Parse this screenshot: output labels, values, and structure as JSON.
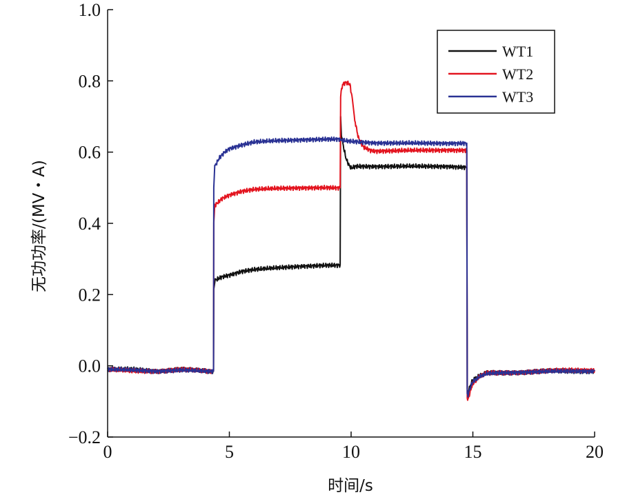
{
  "chart_data": {
    "type": "line",
    "title": "",
    "xlabel": "时间/s",
    "ylabel": "无功功率/(MV・A)",
    "xlim": [
      0,
      20
    ],
    "ylim": [
      -0.2,
      1.0
    ],
    "xticks": [
      0,
      5,
      10,
      15,
      20
    ],
    "xtick_labels": [
      "0",
      "5",
      "10",
      "15",
      "20"
    ],
    "yticks": [
      -0.2,
      0.0,
      0.2,
      0.4,
      0.6,
      0.8,
      1.0
    ],
    "ytick_labels": [
      "−0.2",
      "0.0",
      "0.2",
      "0.4",
      "0.6",
      "0.8",
      "1.0"
    ],
    "grid": false,
    "legend_position": "top-right",
    "series": [
      {
        "name": "WT1",
        "color": "#111111",
        "x": [
          0,
          1,
          2,
          3,
          4,
          4.35,
          4.36,
          4.4,
          4.7,
          5,
          5.5,
          6,
          7,
          8,
          9,
          9.55,
          9.57,
          9.6,
          9.7,
          9.8,
          9.9,
          10.0,
          10.2,
          10.5,
          11,
          12,
          13,
          14,
          14.75,
          14.77,
          14.8,
          14.9,
          15.0,
          15.3,
          15.6,
          16,
          17,
          18,
          19,
          20
        ],
        "y": [
          -0.01,
          -0.01,
          -0.015,
          -0.01,
          -0.015,
          -0.015,
          0.21,
          0.24,
          0.25,
          0.255,
          0.265,
          0.27,
          0.275,
          0.28,
          0.282,
          0.283,
          0.7,
          0.65,
          0.61,
          0.58,
          0.565,
          0.555,
          0.56,
          0.56,
          0.56,
          0.56,
          0.56,
          0.56,
          0.557,
          -0.07,
          -0.075,
          -0.055,
          -0.04,
          -0.028,
          -0.02,
          -0.02,
          -0.018,
          -0.015,
          -0.015,
          -0.015
        ]
      },
      {
        "name": "WT2",
        "color": "#e3141f",
        "x": [
          0,
          1,
          2,
          3,
          4,
          4.35,
          4.36,
          4.4,
          4.7,
          5,
          5.5,
          6,
          7,
          8,
          9,
          9.55,
          9.57,
          9.65,
          9.75,
          9.85,
          9.95,
          10.05,
          10.15,
          10.3,
          10.5,
          10.8,
          11,
          12,
          13,
          14,
          14.75,
          14.77,
          14.8,
          14.9,
          15.0,
          15.3,
          15.6,
          16,
          17,
          18,
          19,
          20
        ],
        "y": [
          -0.01,
          -0.015,
          -0.015,
          -0.01,
          -0.015,
          -0.015,
          0.4,
          0.45,
          0.47,
          0.48,
          0.49,
          0.495,
          0.498,
          0.5,
          0.5,
          0.5,
          0.76,
          0.79,
          0.795,
          0.795,
          0.79,
          0.75,
          0.69,
          0.64,
          0.615,
          0.605,
          0.603,
          0.604,
          0.605,
          0.606,
          0.605,
          -0.09,
          -0.095,
          -0.07,
          -0.05,
          -0.03,
          -0.02,
          -0.02,
          -0.018,
          -0.015,
          -0.012,
          -0.012
        ]
      },
      {
        "name": "WT3",
        "color": "#2a3294",
        "x": [
          0,
          1,
          2,
          3,
          4,
          4.35,
          4.36,
          4.4,
          4.6,
          4.8,
          5,
          5.5,
          6,
          7,
          8,
          9,
          9.55,
          9.57,
          9.7,
          10,
          10.5,
          11,
          12,
          13,
          14,
          14.75,
          14.77,
          14.8,
          14.9,
          15.0,
          15.3,
          15.6,
          16,
          17,
          18,
          19,
          20
        ],
        "y": [
          -0.01,
          -0.012,
          -0.015,
          -0.012,
          -0.015,
          -0.015,
          0.5,
          0.56,
          0.585,
          0.6,
          0.61,
          0.62,
          0.628,
          0.632,
          0.635,
          0.636,
          0.637,
          0.635,
          0.632,
          0.63,
          0.628,
          0.626,
          0.625,
          0.625,
          0.625,
          0.625,
          -0.08,
          -0.082,
          -0.06,
          -0.045,
          -0.03,
          -0.022,
          -0.02,
          -0.018,
          -0.016,
          -0.015,
          -0.015
        ]
      }
    ]
  }
}
